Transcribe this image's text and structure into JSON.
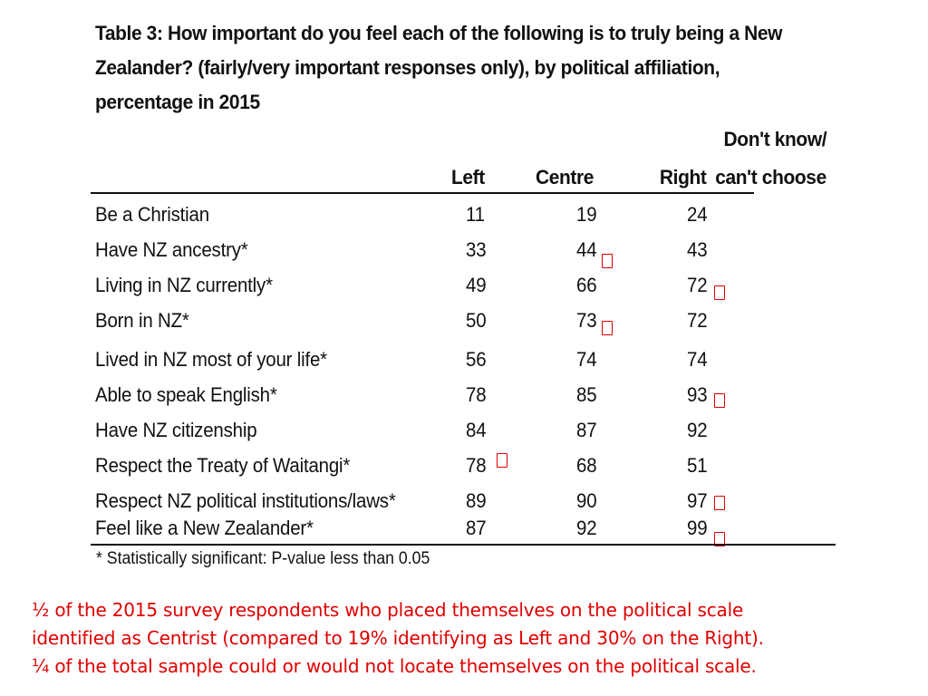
{
  "title": "Table 3: How important do you feel each of the following is to truly being a New Zealander? (fairly/very important responses only), by political affiliation, percentage in 2015",
  "table": {
    "columns": {
      "left": "Left",
      "centre": "Centre",
      "right": "Right",
      "dont_know_line1": "Don't know/",
      "dont_know_line2": "can't choose"
    },
    "rows": [
      {
        "label": "Be a Christian",
        "left": "11",
        "centre": "19",
        "right": "24"
      },
      {
        "label": "Have NZ ancestry*",
        "left": "33",
        "centre": "44",
        "right": "43"
      },
      {
        "label": "Living in NZ currently*",
        "left": "49",
        "centre": "66",
        "right": "72"
      },
      {
        "label": "Born in NZ*",
        "left": "50",
        "centre": "73",
        "right": "72"
      },
      {
        "label": "Lived in NZ most of your life*",
        "left": "56",
        "centre": "74",
        "right": "74"
      },
      {
        "label": "Able to speak English*",
        "left": "78",
        "centre": "85",
        "right": "93"
      },
      {
        "label": "Have NZ citizenship",
        "left": "84",
        "centre": "87",
        "right": "92"
      },
      {
        "label": "Respect the Treaty of Waitangi*",
        "left": "78",
        "centre": "68",
        "right": "51"
      },
      {
        "label": "Respect NZ political institutions/laws*",
        "left": "89",
        "centre": "90",
        "right": "97"
      },
      {
        "label": "Feel like a New Zealander*",
        "left": "87",
        "centre": "92",
        "right": "99"
      }
    ],
    "footnote": "* Statistically significant: P-value less than 0.05"
  },
  "highlight_marks": [
    {
      "row": 1,
      "column": "centre"
    },
    {
      "row": 2,
      "column": "right"
    },
    {
      "row": 3,
      "column": "centre"
    },
    {
      "row": 5,
      "column": "right"
    },
    {
      "row": 7,
      "column": "left"
    },
    {
      "row": 8,
      "column": "right"
    },
    {
      "row": 9,
      "column": "right"
    }
  ],
  "notes": [
    "½ of the 2015 survey respondents who placed themselves on the political scale",
    "identified as Centrist (compared to 19% identifying as Left and 30% on the Right).",
    "¼ of the total sample could or would not locate themselves on the political scale."
  ],
  "colors": {
    "text": "#111111",
    "accent": "#e00000",
    "background": "#ffffff"
  }
}
